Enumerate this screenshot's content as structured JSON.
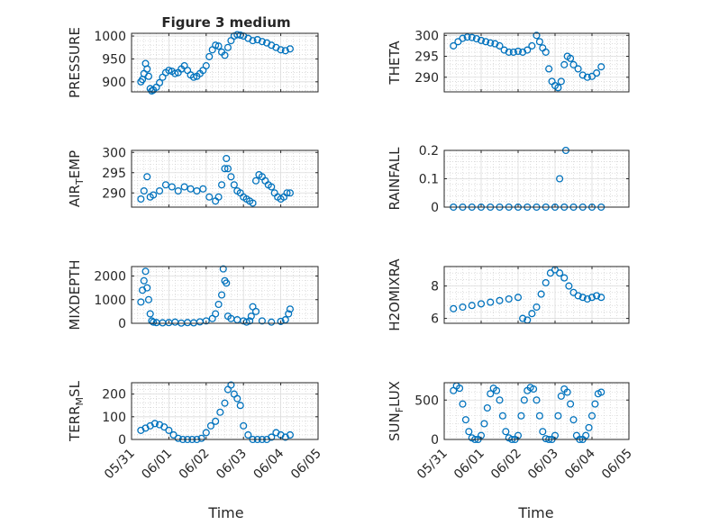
{
  "chart_data": {
    "type": "scatter",
    "title": "Figure 3 medium",
    "xlabel": "Time",
    "grid": true,
    "minor_grid": true,
    "marker": "open-circle",
    "color": "#0072BD",
    "x_ticks": [
      "05/31",
      "06/01",
      "06/02",
      "06/03",
      "06/04",
      "06/05"
    ],
    "x_range": [
      "05/31",
      "06/05"
    ],
    "panels": [
      {
        "name": "PRESSURE",
        "ylabel": "PRESSURE",
        "ylim": [
          878,
          1006
        ],
        "yticks": [
          900,
          950,
          1000
        ],
        "x": [
          "05/31 06:00",
          "05/31 07:00",
          "05/31 08:00",
          "05/31 09:00",
          "05/31 10:00",
          "05/31 11:00",
          "05/31 12:00",
          "05/31 13:00",
          "05/31 14:00",
          "05/31 16:00",
          "05/31 18:00",
          "05/31 20:00",
          "05/31 22:00",
          "06/01 00:00",
          "06/01 02:00",
          "06/01 04:00",
          "06/01 06:00",
          "06/01 08:00",
          "06/01 10:00",
          "06/01 12:00",
          "06/01 14:00",
          "06/01 16:00",
          "06/01 18:00",
          "06/01 20:00",
          "06/01 22:00",
          "06/02 00:00",
          "06/02 02:00",
          "06/02 04:00",
          "06/02 06:00",
          "06/02 08:00",
          "06/02 10:00",
          "06/02 12:00",
          "06/02 14:00",
          "06/02 16:00",
          "06/02 18:00",
          "06/02 20:00",
          "06/02 22:00",
          "06/03 00:00",
          "06/03 03:00",
          "06/03 06:00",
          "06/03 09:00",
          "06/03 12:00",
          "06/03 15:00",
          "06/03 18:00",
          "06/03 21:00",
          "06/04 00:00",
          "06/04 03:00",
          "06/04 06:00"
        ],
        "y": [
          900,
          905,
          918,
          940,
          928,
          912,
          885,
          880,
          882,
          888,
          898,
          910,
          920,
          925,
          923,
          918,
          920,
          928,
          935,
          925,
          915,
          910,
          912,
          918,
          925,
          935,
          955,
          970,
          980,
          978,
          965,
          958,
          975,
          990,
          1000,
          1003,
          1002,
          1000,
          995,
          990,
          992,
          988,
          985,
          980,
          975,
          970,
          968,
          972
        ]
      },
      {
        "name": "THETA",
        "ylabel": "THETA",
        "ylim": [
          286.5,
          300.5
        ],
        "yticks": [
          290,
          295,
          300
        ],
        "x": [
          "05/31 06:00",
          "05/31 09:00",
          "05/31 12:00",
          "05/31 15:00",
          "05/31 18:00",
          "05/31 21:00",
          "06/01 00:00",
          "06/01 03:00",
          "06/01 06:00",
          "06/01 09:00",
          "06/01 12:00",
          "06/01 15:00",
          "06/01 18:00",
          "06/01 21:00",
          "06/02 00:00",
          "06/02 03:00",
          "06/02 06:00",
          "06/02 09:00",
          "06/02 12:00",
          "06/02 14:00",
          "06/02 16:00",
          "06/02 18:00",
          "06/02 20:00",
          "06/02 22:00",
          "06/03 00:00",
          "06/03 02:00",
          "06/03 04:00",
          "06/03 06:00",
          "06/03 08:00",
          "06/03 10:00",
          "06/03 12:00",
          "06/03 15:00",
          "06/03 18:00",
          "06/03 21:00",
          "06/04 00:00",
          "06/04 03:00",
          "06/04 06:00"
        ],
        "y": [
          297.5,
          298.5,
          299.3,
          299.6,
          299.5,
          299.2,
          298.8,
          298.5,
          298.2,
          298,
          297.5,
          296.5,
          296,
          296,
          296.2,
          296,
          296.5,
          297.5,
          300,
          298.5,
          297,
          296,
          292,
          289,
          288,
          287.5,
          289,
          293,
          295,
          294.5,
          293,
          292,
          290.5,
          290,
          290.2,
          291,
          292.5
        ]
      },
      {
        "name": "AIR_TEMP",
        "ylabel": "AIR_TEMP",
        "ylim": [
          286.5,
          300.5
        ],
        "yticks": [
          290,
          295,
          300
        ],
        "x": [
          "05/31 06:00",
          "05/31 08:00",
          "05/31 10:00",
          "05/31 12:00",
          "05/31 14:00",
          "05/31 18:00",
          "05/31 22:00",
          "06/01 02:00",
          "06/01 06:00",
          "06/01 10:00",
          "06/01 14:00",
          "06/01 18:00",
          "06/01 22:00",
          "06/02 02:00",
          "06/02 06:00",
          "06/02 08:00",
          "06/02 10:00",
          "06/02 12:00",
          "06/02 13:00",
          "06/02 14:00",
          "06/02 16:00",
          "06/02 18:00",
          "06/02 20:00",
          "06/02 22:00",
          "06/03 00:00",
          "06/03 02:00",
          "06/03 04:00",
          "06/03 06:00",
          "06/03 08:00",
          "06/03 10:00",
          "06/03 12:00",
          "06/03 14:00",
          "06/03 16:00",
          "06/03 18:00",
          "06/03 20:00",
          "06/03 22:00",
          "06/04 00:00",
          "06/04 02:00",
          "06/04 04:00",
          "06/04 06:00"
        ],
        "y": [
          288.5,
          290.5,
          294,
          289,
          289.5,
          290.5,
          292,
          291.5,
          290.5,
          291.5,
          291,
          290.5,
          291,
          289,
          288,
          289,
          292,
          296,
          298.5,
          296,
          294,
          292,
          290.5,
          290,
          289,
          288.5,
          288,
          287.5,
          293,
          294.5,
          294,
          293,
          292,
          291.5,
          290,
          289,
          288.5,
          289,
          290,
          290
        ]
      },
      {
        "name": "RAINFALL",
        "ylabel": "RAINFALL",
        "ylim": [
          0,
          0.2
        ],
        "yticks": [
          0,
          0.1,
          0.2
        ],
        "x": [
          "05/31 06:00",
          "05/31 12:00",
          "05/31 18:00",
          "06/01 00:00",
          "06/01 06:00",
          "06/01 12:00",
          "06/01 18:00",
          "06/02 00:00",
          "06/02 06:00",
          "06/02 12:00",
          "06/02 18:00",
          "06/03 00:00",
          "06/03 03:00",
          "06/03 06:00",
          "06/03 07:00",
          "06/03 12:00",
          "06/03 18:00",
          "06/04 00:00",
          "06/04 06:00"
        ],
        "y": [
          0,
          0,
          0,
          0,
          0,
          0,
          0,
          0,
          0,
          0,
          0,
          0,
          0.1,
          0,
          0.2,
          0,
          0,
          0,
          0
        ]
      },
      {
        "name": "MIXDEPTH",
        "ylabel": "MIXDEPTH",
        "ylim": [
          0,
          2400
        ],
        "yticks": [
          0,
          1000,
          2000
        ],
        "x": [
          "05/31 06:00",
          "05/31 07:00",
          "05/31 08:00",
          "05/31 09:00",
          "05/31 10:00",
          "05/31 11:00",
          "05/31 12:00",
          "05/31 13:00",
          "05/31 14:00",
          "05/31 16:00",
          "05/31 20:00",
          "06/01 00:00",
          "06/01 04:00",
          "06/01 08:00",
          "06/01 12:00",
          "06/01 16:00",
          "06/01 20:00",
          "06/02 00:00",
          "06/02 04:00",
          "06/02 06:00",
          "06/02 08:00",
          "06/02 10:00",
          "06/02 11:00",
          "06/02 12:00",
          "06/02 13:00",
          "06/02 14:00",
          "06/02 16:00",
          "06/02 20:00",
          "06/03 00:00",
          "06/03 02:00",
          "06/03 04:00",
          "06/03 05:00",
          "06/03 06:00",
          "06/03 08:00",
          "06/03 12:00",
          "06/03 18:00",
          "06/04 00:00",
          "06/04 03:00",
          "06/04 05:00",
          "06/04 06:00"
        ],
        "y": [
          900,
          1400,
          1800,
          2200,
          1500,
          1000,
          400,
          100,
          50,
          30,
          20,
          30,
          50,
          10,
          30,
          20,
          60,
          100,
          200,
          400,
          800,
          1200,
          2300,
          1800,
          1700,
          300,
          200,
          150,
          100,
          50,
          100,
          300,
          700,
          500,
          100,
          50,
          80,
          150,
          400,
          600
        ]
      },
      {
        "name": "H2OMIXRA",
        "ylabel": "H2OMIXRA",
        "ylim": [
          5.7,
          9.2
        ],
        "yticks": [
          6,
          8
        ],
        "x": [
          "05/31 06:00",
          "05/31 12:00",
          "05/31 18:00",
          "06/01 00:00",
          "06/01 06:00",
          "06/01 12:00",
          "06/01 18:00",
          "06/02 00:00",
          "06/02 03:00",
          "06/02 06:00",
          "06/02 09:00",
          "06/02 12:00",
          "06/02 15:00",
          "06/02 18:00",
          "06/02 21:00",
          "06/03 00:00",
          "06/03 03:00",
          "06/03 06:00",
          "06/03 09:00",
          "06/03 12:00",
          "06/03 15:00",
          "06/03 18:00",
          "06/03 21:00",
          "06/04 00:00",
          "06/04 03:00",
          "06/04 06:00"
        ],
        "y": [
          6.6,
          6.7,
          6.8,
          6.9,
          7.0,
          7.1,
          7.2,
          7.3,
          6.0,
          5.9,
          6.3,
          6.7,
          7.5,
          8.2,
          8.8,
          9.0,
          8.8,
          8.5,
          8.0,
          7.6,
          7.4,
          7.3,
          7.2,
          7.3,
          7.4,
          7.3
        ]
      },
      {
        "name": "TERR_MSL",
        "ylabel": "TERR_MSL",
        "ylim": [
          0,
          250
        ],
        "yticks": [
          0,
          100,
          200
        ],
        "x": [
          "05/31 06:00",
          "05/31 09:00",
          "05/31 12:00",
          "05/31 15:00",
          "05/31 18:00",
          "05/31 21:00",
          "06/01 00:00",
          "06/01 03:00",
          "06/01 06:00",
          "06/01 09:00",
          "06/01 12:00",
          "06/01 15:00",
          "06/01 18:00",
          "06/01 21:00",
          "06/02 00:00",
          "06/02 03:00",
          "06/02 06:00",
          "06/02 09:00",
          "06/02 12:00",
          "06/02 14:00",
          "06/02 16:00",
          "06/02 18:00",
          "06/02 20:00",
          "06/02 22:00",
          "06/03 00:00",
          "06/03 03:00",
          "06/03 06:00",
          "06/03 09:00",
          "06/03 12:00",
          "06/03 15:00",
          "06/03 18:00",
          "06/03 21:00",
          "06/04 00:00",
          "06/04 03:00",
          "06/04 06:00"
        ],
        "y": [
          40,
          50,
          60,
          70,
          65,
          55,
          40,
          20,
          5,
          0,
          0,
          0,
          0,
          5,
          30,
          60,
          80,
          120,
          160,
          220,
          240,
          200,
          180,
          150,
          60,
          20,
          0,
          0,
          0,
          0,
          10,
          30,
          20,
          10,
          20
        ]
      },
      {
        "name": "SUN_FLUX",
        "ylabel": "SUN_FLUX",
        "ylim": [
          0,
          720
        ],
        "yticks": [
          0,
          500
        ],
        "x": [
          "05/31 06:00",
          "05/31 08:00",
          "05/31 10:00",
          "05/31 12:00",
          "05/31 14:00",
          "05/31 16:00",
          "05/31 18:00",
          "05/31 20:00",
          "05/31 22:00",
          "06/01 00:00",
          "06/01 02:00",
          "06/01 04:00",
          "06/01 06:00",
          "06/01 08:00",
          "06/01 10:00",
          "06/01 12:00",
          "06/01 14:00",
          "06/01 16:00",
          "06/01 18:00",
          "06/01 20:00",
          "06/01 22:00",
          "06/02 00:00",
          "06/02 02:00",
          "06/02 04:00",
          "06/02 06:00",
          "06/02 08:00",
          "06/02 10:00",
          "06/02 12:00",
          "06/02 14:00",
          "06/02 16:00",
          "06/02 18:00",
          "06/02 20:00",
          "06/02 22:00",
          "06/03 00:00",
          "06/03 02:00",
          "06/03 04:00",
          "06/03 06:00",
          "06/03 08:00",
          "06/03 10:00",
          "06/03 12:00",
          "06/03 14:00",
          "06/03 16:00",
          "06/03 18:00",
          "06/03 20:00",
          "06/03 22:00",
          "06/04 00:00",
          "06/04 02:00",
          "06/04 04:00",
          "06/04 06:00"
        ],
        "y": [
          620,
          680,
          650,
          450,
          250,
          100,
          20,
          0,
          0,
          50,
          200,
          400,
          580,
          650,
          620,
          500,
          300,
          100,
          20,
          0,
          0,
          50,
          300,
          500,
          620,
          660,
          640,
          500,
          300,
          100,
          10,
          0,
          0,
          50,
          300,
          550,
          640,
          600,
          450,
          250,
          50,
          0,
          0,
          50,
          150,
          300,
          450,
          580,
          600
        ]
      }
    ]
  }
}
